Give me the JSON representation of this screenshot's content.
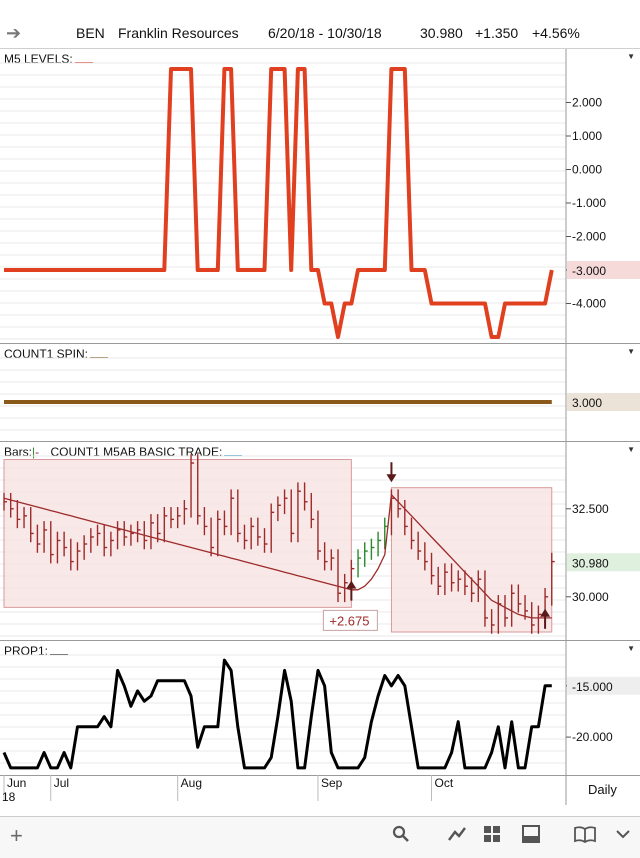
{
  "header": {
    "symbol": "BEN",
    "company": "Franklin Resources",
    "date_range": "6/20/18 - 10/30/18",
    "last": "30.980",
    "change": "+1.350",
    "change_pct": "+4.56%"
  },
  "panels": {
    "m5": {
      "title": "M5 LEVELS:",
      "swatch": "#e04020"
    },
    "spin": {
      "title": "COUNT1 SPIN:",
      "swatch": "#8a5a1a"
    },
    "bars": {
      "title_prefix": "Bars:",
      "title": "COUNT1 M5AB BASIC TRADE:",
      "swatch": "#4aa0d0",
      "trade_label": "+2.675"
    },
    "prop": {
      "title": "PROP1:",
      "swatch": "#111111"
    }
  },
  "footer": {
    "period": "Daily"
  },
  "icons": [
    "arrow-right-icon",
    "plus-icon",
    "search-icon",
    "draw-icon",
    "grid-icon",
    "layout-icon",
    "book-icon",
    "dropdown-icon"
  ],
  "colors": {
    "m5": "#e04020",
    "spin": "#8a5a1a",
    "price": "#9e2a2a",
    "up_bar": "#2c8a2c",
    "prop": "#000000",
    "box_fill": "#f6e0e0",
    "box_border": "#d89a9a"
  },
  "chart_data": [
    {
      "type": "line",
      "title": "M5 LEVELS",
      "ylim": [
        -5,
        3
      ],
      "y_ticks": [
        "2.000",
        "1.000",
        "0.000",
        "-1.000",
        "-2.000",
        "-3.000",
        "-4.000"
      ],
      "y_tick_values": [
        2,
        1,
        0,
        -1,
        -2,
        -3,
        -4
      ],
      "last_value": "-3.000",
      "series": [
        {
          "values": [
            -3,
            -3,
            -3,
            -3,
            -3,
            -3,
            -3,
            -3,
            -3,
            -3,
            -3,
            -3,
            -3,
            -3,
            -3,
            -3,
            -3,
            -3,
            -3,
            -3,
            -3,
            -3,
            -3,
            -3,
            -3,
            3,
            3,
            3,
            3,
            -3,
            -3,
            -3,
            -3,
            3,
            3,
            -3,
            -3,
            -3,
            -3,
            -3,
            3,
            3,
            3,
            -3,
            3,
            3,
            -3,
            -3,
            -4,
            -4,
            -5,
            -4,
            -4,
            -3,
            -3,
            -3,
            -3,
            -3,
            3,
            3,
            3,
            -3,
            -3,
            -3,
            -4,
            -4,
            -4,
            -4,
            -4,
            -4,
            -4,
            -4,
            -4,
            -5,
            -5,
            -4,
            -4,
            -4,
            -4,
            -4,
            -4,
            -4,
            -3
          ]
        }
      ]
    },
    {
      "type": "line",
      "title": "COUNT1 SPIN",
      "ylim": [
        2.5,
        3.5
      ],
      "last_value": "3.000",
      "series": [
        {
          "values": [
            3,
            3,
            3,
            3,
            3,
            3,
            3,
            3,
            3,
            3,
            3,
            3,
            3,
            3,
            3,
            3,
            3,
            3,
            3,
            3,
            3,
            3,
            3,
            3,
            3,
            3,
            3,
            3,
            3,
            3,
            3,
            3,
            3,
            3,
            3,
            3,
            3,
            3,
            3,
            3,
            3,
            3,
            3,
            3,
            3,
            3,
            3,
            3,
            3,
            3,
            3,
            3,
            3,
            3,
            3,
            3,
            3,
            3,
            3,
            3,
            3,
            3,
            3,
            3,
            3,
            3,
            3,
            3,
            3,
            3,
            3,
            3,
            3,
            3,
            3,
            3,
            3,
            3,
            3,
            3,
            3,
            3,
            3
          ]
        }
      ]
    },
    {
      "type": "bar",
      "title": "COUNT1 M5AB BASIC TRADE",
      "ylim": [
        29,
        34
      ],
      "y_ticks": [
        "32.500",
        "30.000"
      ],
      "y_tick_values": [
        32.5,
        30
      ],
      "last_value": "30.980",
      "trade_result": "+2.675",
      "close": [
        32.7,
        32.5,
        32.2,
        32.3,
        31.8,
        31.5,
        31.9,
        31.2,
        31.6,
        31.4,
        31.0,
        31.3,
        31.5,
        31.7,
        31.8,
        31.4,
        31.6,
        31.9,
        31.7,
        31.8,
        31.9,
        31.6,
        32.1,
        31.8,
        32.3,
        32.2,
        32.3,
        32.5,
        33.8,
        32.3,
        32.0,
        31.4,
        32.2,
        32.0,
        32.8,
        31.8,
        31.6,
        32.0,
        31.7,
        31.5,
        32.4,
        32.6,
        32.8,
        31.8,
        33.0,
        32.7,
        32.2,
        31.3,
        31.0,
        31.1,
        30.1,
        30.4,
        30.8,
        31.1,
        31.3,
        31.4,
        31.6,
        32.0,
        32.8,
        32.5,
        32.0,
        31.6,
        31.3,
        31.0,
        30.6,
        30.3,
        30.7,
        30.4,
        30.5,
        30.3,
        30.1,
        30.5,
        29.4,
        29.2,
        29.8,
        29.4,
        30.1,
        29.8,
        29.6,
        29.2,
        29.5,
        30.0,
        31.0
      ],
      "trend": [
        32.8,
        32.75,
        32.7,
        32.65,
        32.6,
        32.55,
        32.5,
        32.45,
        32.4,
        32.35,
        32.3,
        32.25,
        32.2,
        32.15,
        32.1,
        32.05,
        32.0,
        31.95,
        31.9,
        31.85,
        31.8,
        31.75,
        31.7,
        31.65,
        31.6,
        31.55,
        31.5,
        31.45,
        31.4,
        31.35,
        31.3,
        31.25,
        31.2,
        31.15,
        31.1,
        31.05,
        31.0,
        30.95,
        30.9,
        30.85,
        30.8,
        30.75,
        30.7,
        30.65,
        30.6,
        30.55,
        30.5,
        30.45,
        30.4,
        30.35,
        30.3,
        30.25,
        30.2,
        30.2,
        30.3,
        30.5,
        30.8,
        31.2,
        32.9,
        32.7,
        32.5,
        32.3,
        32.1,
        31.9,
        31.7,
        31.5,
        31.3,
        31.1,
        30.9,
        30.7,
        30.5,
        30.3,
        30.1,
        29.9,
        29.8,
        29.7,
        29.6,
        29.5,
        29.45,
        29.4,
        29.4,
        29.4,
        29.4
      ],
      "trade_boxes": [
        {
          "start": 0,
          "end": 52,
          "low": 29.7,
          "high": 33.9
        },
        {
          "start": 58,
          "end": 82,
          "low": 29.0,
          "high": 33.1
        }
      ],
      "signals": [
        {
          "index": 52,
          "direction": "up"
        },
        {
          "index": 58,
          "direction": "down"
        },
        {
          "index": 81,
          "direction": "up"
        }
      ]
    },
    {
      "type": "line",
      "title": "PROP1",
      "ylim": [
        -23.5,
        -12
      ],
      "y_ticks": [
        "-15.000",
        "-20.000"
      ],
      "y_tick_values": [
        -15,
        -20
      ],
      "last_value": "-15.000",
      "series": [
        {
          "values": [
            -21.5,
            -23,
            -23,
            -23,
            -23,
            -23,
            -21.5,
            -23,
            -23,
            -21.5,
            -23,
            -19,
            -19,
            -19,
            -19,
            -18,
            -19,
            -13.5,
            -15,
            -17,
            -15.5,
            -16.5,
            -16,
            -14.5,
            -14.5,
            -14.5,
            -14.5,
            -14.5,
            -16,
            -21,
            -19,
            -19,
            -19,
            -12.5,
            -13.5,
            -19,
            -23,
            -23,
            -23,
            -23,
            -22,
            -18,
            -13.5,
            -16.5,
            -23,
            -23,
            -18,
            -13.5,
            -15,
            -21.5,
            -23,
            -23,
            -23,
            -23,
            -22,
            -18.5,
            -16,
            -14,
            -15,
            -14,
            -15,
            -19,
            -23,
            -23,
            -23,
            -23,
            -23,
            -21.5,
            -18.5,
            -23,
            -23,
            -23,
            -23,
            -21.5,
            -19,
            -23,
            -18.5,
            -23,
            -23,
            -19,
            -19,
            -15,
            -15
          ]
        }
      ]
    }
  ],
  "x_axis": {
    "labels": [
      "Jun",
      "Jul",
      "Aug",
      "Sep",
      "Oct"
    ],
    "year": "18",
    "label_index": [
      0,
      7,
      26,
      47,
      64
    ]
  }
}
